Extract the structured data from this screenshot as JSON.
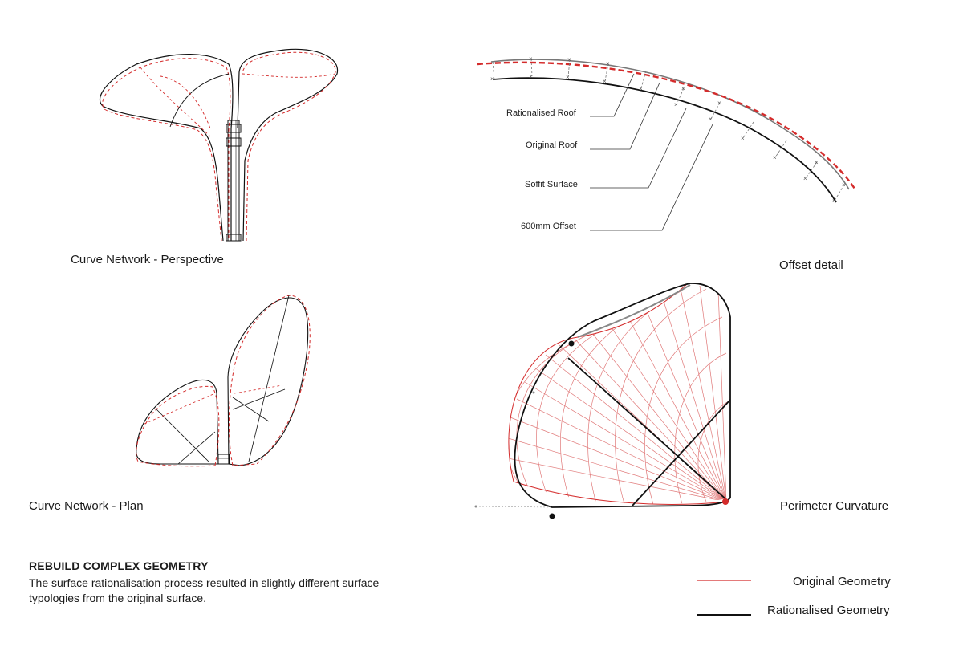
{
  "panels": {
    "perspective_title": "Curve Network - Perspective",
    "offset_title": "Offset detail",
    "plan_title": "Curve Network - Plan",
    "curvature_title": "Perimeter Curvature"
  },
  "offset_labels": {
    "rationalised_roof": "Rationalised Roof",
    "original_roof": "Original Roof",
    "soffit_surface": "Soffit Surface",
    "offset": "600mm Offset"
  },
  "notes": {
    "heading": "REBUILD COMPLEX GEOMETRY",
    "description": "The surface rationalisation process resulted in slightly different surface typologies from the original surface."
  },
  "legend": {
    "original": "Original Geometry",
    "rationalised": "Rationalised Geometry"
  },
  "colors": {
    "original": "#d42b2b",
    "rationalised": "#111111",
    "mesh": "#e07878",
    "grey": "#888888"
  }
}
